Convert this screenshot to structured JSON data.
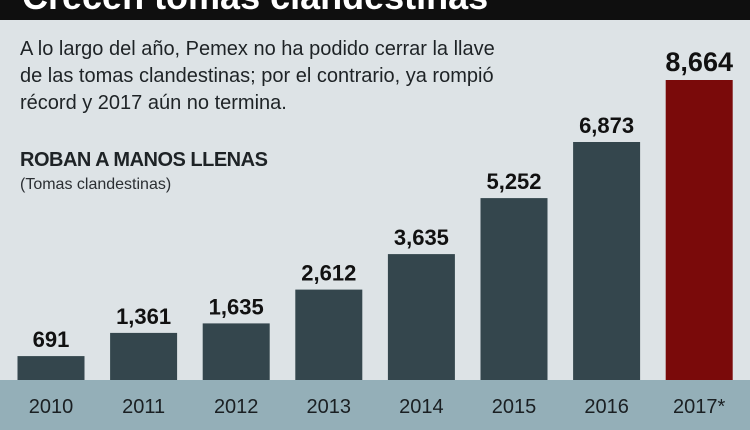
{
  "header": {
    "title": "Crecen tomas clandestinas",
    "intro": "A lo largo del año, Pemex no ha podido cerrar la llave de las tomas clandestinas; por el contrario, ya rompió récord y 2017 aún no termina."
  },
  "colors": {
    "background": "#dde3e6",
    "bar": "#34464d",
    "highlight_bar": "#7a0a0a",
    "axis_band": "#94afb8",
    "title_band": "#0f0f0f",
    "text": "#1e2326"
  },
  "chart_data": {
    "type": "bar",
    "title": "ROBAN A MANOS LLENAS",
    "subtitle": "(Tomas clandestinas)",
    "categories": [
      "2010",
      "2011",
      "2012",
      "2013",
      "2014",
      "2015",
      "2016",
      "2017*"
    ],
    "values": [
      691,
      1361,
      1635,
      2612,
      3635,
      5252,
      6873,
      8664
    ],
    "value_labels": [
      "691",
      "1,361",
      "1,635",
      "2,612",
      "3,635",
      "5,252",
      "6,873",
      "8,664"
    ],
    "highlight_category": "2017*",
    "xlabel": "",
    "ylabel": "",
    "ylim": [
      0,
      9000
    ],
    "grid": false,
    "legend": "none"
  }
}
